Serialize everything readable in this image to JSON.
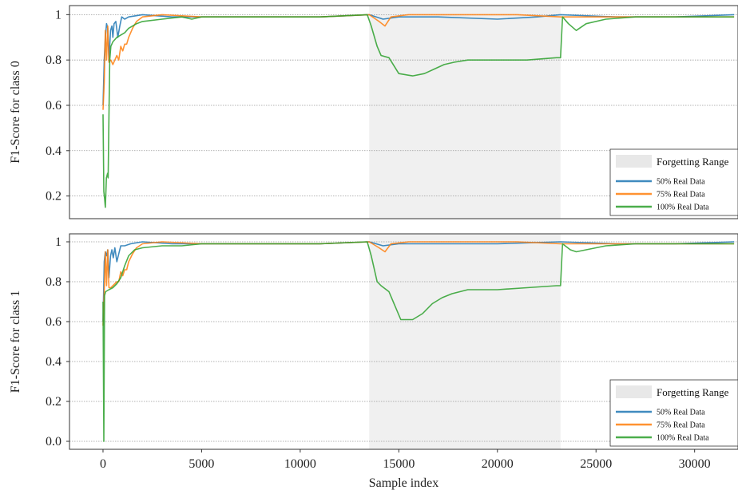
{
  "chart_data": [
    {
      "type": "line",
      "ylabel": "F1-Score for class 0",
      "xlabel": "",
      "xlim": [
        -1700,
        32200
      ],
      "ylim": [
        0.1,
        1.04
      ],
      "yticks": [
        0.2,
        0.4,
        0.6,
        0.8,
        1.0
      ],
      "ytick_labels": [
        "0.2",
        "0.4",
        "0.6",
        "0.8",
        "1"
      ],
      "grid": "horizontal dotted",
      "legend_placement": "lower-right",
      "shaded_range": {
        "label": "Forgetting Range",
        "x": [
          13500,
          23200
        ],
        "color": "#f0f0f0"
      },
      "series": [
        {
          "name": "50% Real Data",
          "color": "#1f77b4",
          "points": [
            [
              0,
              0.6
            ],
            [
              60,
              0.8
            ],
            [
              120,
              0.9
            ],
            [
              180,
              0.96
            ],
            [
              240,
              0.94
            ],
            [
              300,
              0.8
            ],
            [
              380,
              0.93
            ],
            [
              450,
              0.95
            ],
            [
              500,
              0.9
            ],
            [
              560,
              0.96
            ],
            [
              650,
              0.97
            ],
            [
              750,
              0.9
            ],
            [
              850,
              0.95
            ],
            [
              950,
              0.99
            ],
            [
              1100,
              0.98
            ],
            [
              1300,
              0.99
            ],
            [
              2000,
              1.0
            ],
            [
              3500,
              0.99
            ],
            [
              5000,
              0.99
            ],
            [
              8000,
              0.99
            ],
            [
              11000,
              0.99
            ],
            [
              13500,
              1.0
            ],
            [
              14200,
              0.98
            ],
            [
              15000,
              0.99
            ],
            [
              17000,
              0.99
            ],
            [
              20000,
              0.98
            ],
            [
              22000,
              0.99
            ],
            [
              23200,
              1.0
            ],
            [
              26000,
              0.99
            ],
            [
              29000,
              0.99
            ],
            [
              32000,
              1.0
            ]
          ]
        },
        {
          "name": "75% Real Data",
          "color": "#ff7f0e",
          "points": [
            [
              0,
              0.58
            ],
            [
              60,
              0.7
            ],
            [
              120,
              0.93
            ],
            [
              180,
              0.8
            ],
            [
              240,
              0.95
            ],
            [
              300,
              0.79
            ],
            [
              400,
              0.8
            ],
            [
              500,
              0.78
            ],
            [
              600,
              0.8
            ],
            [
              700,
              0.82
            ],
            [
              800,
              0.8
            ],
            [
              900,
              0.86
            ],
            [
              1000,
              0.84
            ],
            [
              1100,
              0.87
            ],
            [
              1200,
              0.87
            ],
            [
              1300,
              0.9
            ],
            [
              1500,
              0.94
            ],
            [
              1700,
              0.97
            ],
            [
              2000,
              0.99
            ],
            [
              3000,
              1.0
            ],
            [
              5000,
              0.99
            ],
            [
              8000,
              0.99
            ],
            [
              11000,
              0.99
            ],
            [
              13500,
              1.0
            ],
            [
              14000,
              0.97
            ],
            [
              14300,
              0.95
            ],
            [
              14600,
              0.99
            ],
            [
              15500,
              1.0
            ],
            [
              18000,
              1.0
            ],
            [
              21000,
              1.0
            ],
            [
              23200,
              0.99
            ],
            [
              26000,
              0.99
            ],
            [
              29000,
              0.99
            ],
            [
              32000,
              0.99
            ]
          ]
        },
        {
          "name": "100% Real Data",
          "color": "#2ca02c",
          "points": [
            [
              0,
              0.56
            ],
            [
              40,
              0.22
            ],
            [
              80,
              0.19
            ],
            [
              120,
              0.15
            ],
            [
              170,
              0.28
            ],
            [
              230,
              0.3
            ],
            [
              260,
              0.28
            ],
            [
              300,
              0.55
            ],
            [
              340,
              0.8
            ],
            [
              400,
              0.86
            ],
            [
              500,
              0.88
            ],
            [
              700,
              0.9
            ],
            [
              900,
              0.91
            ],
            [
              1100,
              0.92
            ],
            [
              1300,
              0.94
            ],
            [
              1500,
              0.95
            ],
            [
              1700,
              0.96
            ],
            [
              2000,
              0.97
            ],
            [
              3000,
              0.98
            ],
            [
              4000,
              0.99
            ],
            [
              4500,
              0.98
            ],
            [
              5000,
              0.99
            ],
            [
              8000,
              0.99
            ],
            [
              11000,
              0.99
            ],
            [
              13400,
              1.0
            ],
            [
              13600,
              0.95
            ],
            [
              13900,
              0.86
            ],
            [
              14100,
              0.82
            ],
            [
              14500,
              0.81
            ],
            [
              15000,
              0.74
            ],
            [
              15700,
              0.73
            ],
            [
              16300,
              0.74
            ],
            [
              16800,
              0.76
            ],
            [
              17300,
              0.78
            ],
            [
              17800,
              0.79
            ],
            [
              18500,
              0.8
            ],
            [
              20000,
              0.8
            ],
            [
              21500,
              0.8
            ],
            [
              23000,
              0.81
            ],
            [
              23200,
              0.81
            ],
            [
              23300,
              0.99
            ],
            [
              23600,
              0.96
            ],
            [
              24000,
              0.93
            ],
            [
              24500,
              0.96
            ],
            [
              25500,
              0.98
            ],
            [
              27000,
              0.99
            ],
            [
              30000,
              0.99
            ],
            [
              32000,
              0.99
            ]
          ]
        }
      ]
    },
    {
      "type": "line",
      "ylabel": "F1-Score for class 1",
      "xlabel": "Sample index",
      "xlim": [
        -1700,
        32200
      ],
      "ylim": [
        -0.04,
        1.04
      ],
      "yticks": [
        0.0,
        0.2,
        0.4,
        0.6,
        0.8,
        1.0
      ],
      "ytick_labels": [
        "0.0",
        "0.2",
        "0.4",
        "0.6",
        "0.8",
        "1"
      ],
      "xticks": [
        0,
        5000,
        10000,
        15000,
        20000,
        25000,
        30000
      ],
      "xtick_labels": [
        "0",
        "5000",
        "10000",
        "15000",
        "20000",
        "25000",
        "30000"
      ],
      "grid": "horizontal dotted",
      "legend_placement": "lower-right",
      "shaded_range": {
        "label": "Forgetting Range",
        "x": [
          13500,
          23200
        ],
        "color": "#f0f0f0"
      },
      "series": [
        {
          "name": "50% Real Data",
          "color": "#1f77b4",
          "points": [
            [
              0,
              0.6
            ],
            [
              60,
              0.9
            ],
            [
              120,
              0.95
            ],
            [
              180,
              0.93
            ],
            [
              240,
              0.96
            ],
            [
              300,
              0.82
            ],
            [
              380,
              0.93
            ],
            [
              450,
              0.96
            ],
            [
              520,
              0.92
            ],
            [
              600,
              0.97
            ],
            [
              700,
              0.9
            ],
            [
              800,
              0.94
            ],
            [
              900,
              0.98
            ],
            [
              1100,
              0.98
            ],
            [
              1400,
              0.99
            ],
            [
              2000,
              1.0
            ],
            [
              3500,
              0.99
            ],
            [
              5000,
              0.99
            ],
            [
              8000,
              0.99
            ],
            [
              11000,
              0.99
            ],
            [
              13500,
              1.0
            ],
            [
              14200,
              0.98
            ],
            [
              15000,
              0.99
            ],
            [
              17000,
              0.99
            ],
            [
              20000,
              0.99
            ],
            [
              23200,
              1.0
            ],
            [
              26000,
              0.99
            ],
            [
              29000,
              0.99
            ],
            [
              32000,
              1.0
            ]
          ]
        },
        {
          "name": "75% Real Data",
          "color": "#ff7f0e",
          "points": [
            [
              0,
              0.58
            ],
            [
              60,
              0.75
            ],
            [
              120,
              0.95
            ],
            [
              180,
              0.78
            ],
            [
              240,
              0.96
            ],
            [
              300,
              0.77
            ],
            [
              400,
              0.77
            ],
            [
              500,
              0.78
            ],
            [
              600,
              0.79
            ],
            [
              700,
              0.8
            ],
            [
              800,
              0.8
            ],
            [
              900,
              0.85
            ],
            [
              1000,
              0.83
            ],
            [
              1100,
              0.86
            ],
            [
              1200,
              0.86
            ],
            [
              1300,
              0.9
            ],
            [
              1500,
              0.94
            ],
            [
              1700,
              0.97
            ],
            [
              2000,
              0.99
            ],
            [
              3000,
              1.0
            ],
            [
              5000,
              0.99
            ],
            [
              8000,
              0.99
            ],
            [
              11000,
              0.99
            ],
            [
              13500,
              1.0
            ],
            [
              14000,
              0.97
            ],
            [
              14300,
              0.95
            ],
            [
              14600,
              0.99
            ],
            [
              15500,
              1.0
            ],
            [
              18000,
              1.0
            ],
            [
              21000,
              1.0
            ],
            [
              23200,
              0.99
            ],
            [
              26000,
              0.99
            ],
            [
              29000,
              0.99
            ],
            [
              32000,
              0.99
            ]
          ]
        },
        {
          "name": "100% Real Data",
          "color": "#2ca02c",
          "points": [
            [
              0,
              0.7
            ],
            [
              40,
              0.0
            ],
            [
              80,
              0.73
            ],
            [
              130,
              0.75
            ],
            [
              300,
              0.76
            ],
            [
              500,
              0.77
            ],
            [
              700,
              0.79
            ],
            [
              900,
              0.82
            ],
            [
              1100,
              0.88
            ],
            [
              1300,
              0.93
            ],
            [
              1600,
              0.96
            ],
            [
              2000,
              0.97
            ],
            [
              3000,
              0.98
            ],
            [
              4000,
              0.98
            ],
            [
              5000,
              0.99
            ],
            [
              8000,
              0.99
            ],
            [
              11000,
              0.99
            ],
            [
              13400,
              1.0
            ],
            [
              13600,
              0.93
            ],
            [
              13900,
              0.8
            ],
            [
              14100,
              0.78
            ],
            [
              14500,
              0.75
            ],
            [
              14800,
              0.68
            ],
            [
              15100,
              0.61
            ],
            [
              15700,
              0.61
            ],
            [
              16200,
              0.64
            ],
            [
              16700,
              0.69
            ],
            [
              17200,
              0.72
            ],
            [
              17700,
              0.74
            ],
            [
              18500,
              0.76
            ],
            [
              20000,
              0.76
            ],
            [
              21500,
              0.77
            ],
            [
              23000,
              0.78
            ],
            [
              23200,
              0.78
            ],
            [
              23300,
              0.99
            ],
            [
              23700,
              0.96
            ],
            [
              24000,
              0.95
            ],
            [
              24500,
              0.96
            ],
            [
              25500,
              0.98
            ],
            [
              27000,
              0.99
            ],
            [
              30000,
              0.99
            ],
            [
              32000,
              0.99
            ]
          ]
        }
      ]
    }
  ]
}
